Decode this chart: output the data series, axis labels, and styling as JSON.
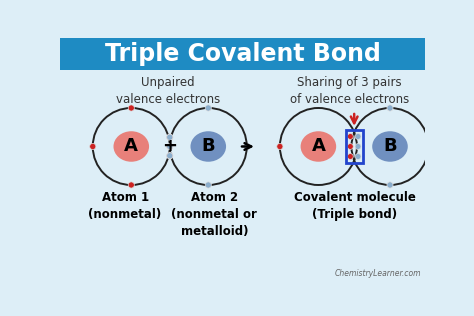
{
  "title": "Triple Covalent Bond",
  "title_bg": "#1e8bc3",
  "title_color": "#ffffff",
  "bg_color": "#ddeef7",
  "label_left_top": "Unpaired\nvalence electrons",
  "label_right_top": "Sharing of 3 pairs\nof valence electrons",
  "atom_a_color": "#e8807a",
  "atom_b_color": "#7090c0",
  "atom_a_label": "A",
  "atom_b_label": "B",
  "electron_red": "#cc2222",
  "electron_blue": "#8aadcc",
  "box_color": "#2244cc",
  "arrow_color": "#cc2222",
  "label_atom1": "Atom 1\n(nonmetal)",
  "label_atom2": "Atom 2\n(nonmetal or\nmetalloid)",
  "label_molecule": "Covalent molecule\n(Triple bond)",
  "watermark": "ChemistryLearner.com",
  "text_color": "#333333"
}
